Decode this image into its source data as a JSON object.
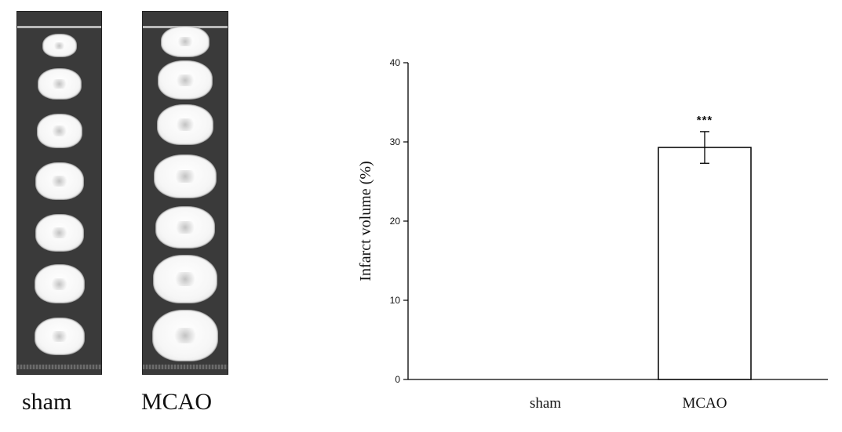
{
  "figure": {
    "image_captions": [
      "sham",
      "MCAO"
    ]
  },
  "chart_data": {
    "type": "bar",
    "categories": [
      "sham",
      "MCAO"
    ],
    "values": [
      0,
      29.3
    ],
    "errors": [
      0,
      2.0
    ],
    "annotations": [
      "",
      "***"
    ],
    "ylabel": "Infarct volume (%)",
    "xlabel": "",
    "ylim": [
      0,
      40
    ],
    "yticks": [
      "0",
      "10",
      "20",
      "30",
      "40"
    ],
    "grid": false,
    "bar_fill": "#ffffff",
    "bar_stroke": "#000000"
  }
}
